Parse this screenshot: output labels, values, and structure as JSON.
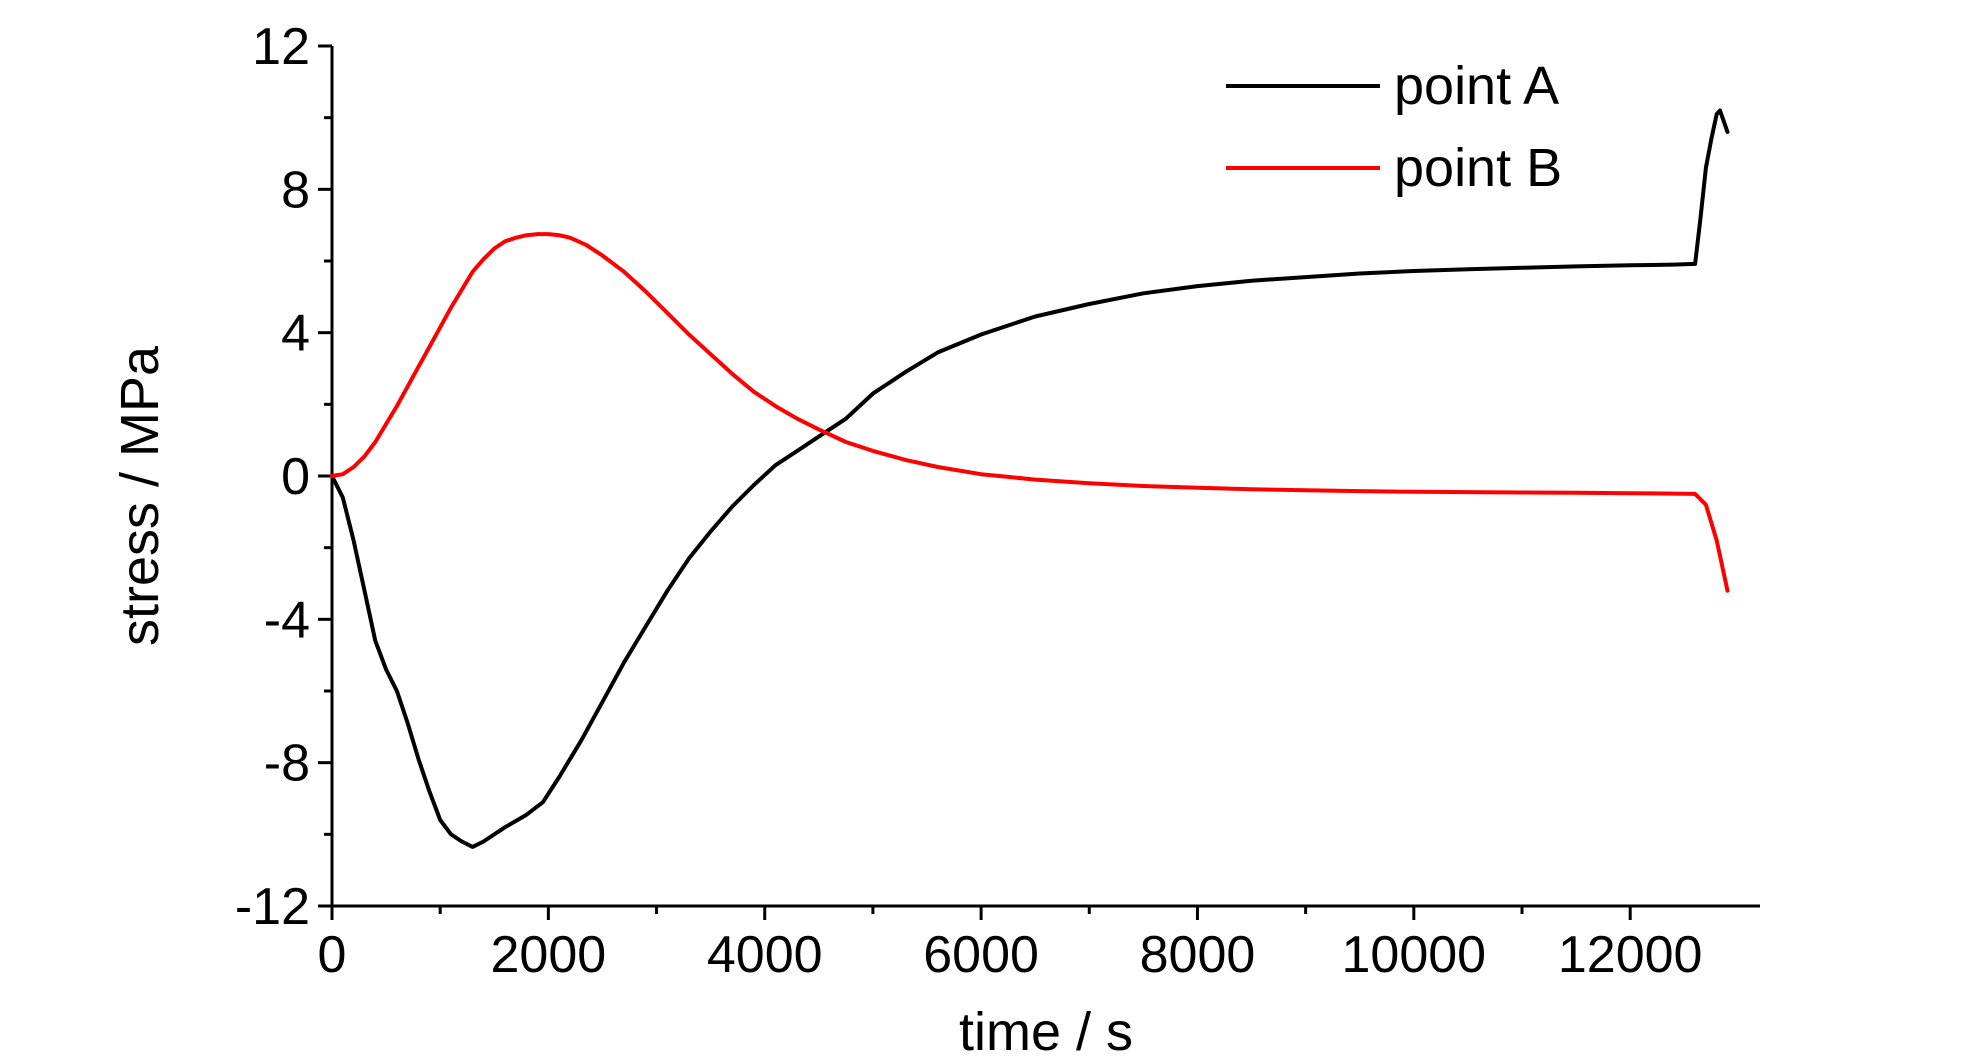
{
  "chart_data": {
    "type": "line",
    "title": "",
    "xlabel": "time / s",
    "ylabel": "stress / MPa",
    "xlim": [
      0,
      13000
    ],
    "ylim": [
      -12,
      12
    ],
    "xticks": [
      0,
      2000,
      4000,
      6000,
      8000,
      10000,
      12000
    ],
    "xtick_labels": [
      "0",
      "2000",
      "4000",
      "6000",
      "8000",
      "10000",
      "12000"
    ],
    "yticks": [
      -12,
      -8,
      -4,
      0,
      4,
      8,
      12
    ],
    "ytick_labels": [
      "-12",
      "-8",
      "-4",
      "0",
      "4",
      "8",
      "12"
    ],
    "grid": false,
    "legend_position": "top-right",
    "series": [
      {
        "name": "point A",
        "color": "#000000",
        "x": [
          0,
          100,
          200,
          300,
          400,
          500,
          600,
          700,
          800,
          900,
          1000,
          1100,
          1200,
          1300,
          1400,
          1600,
          1800,
          1950,
          2100,
          2300,
          2500,
          2700,
          2900,
          3100,
          3300,
          3500,
          3700,
          3900,
          4100,
          4300,
          4500,
          4750,
          5000,
          5300,
          5600,
          6000,
          6500,
          7000,
          7500,
          8000,
          8500,
          9000,
          9500,
          10000,
          10500,
          11000,
          11500,
          12000,
          12400,
          12600,
          12650,
          12700,
          12750,
          12800,
          12830,
          12900
        ],
        "y": [
          0,
          -0.6,
          -1.8,
          -3.2,
          -4.6,
          -5.4,
          -6.0,
          -6.9,
          -7.9,
          -8.8,
          -9.6,
          -10.0,
          -10.2,
          -10.35,
          -10.2,
          -9.8,
          -9.45,
          -9.1,
          -8.4,
          -7.4,
          -6.3,
          -5.2,
          -4.2,
          -3.2,
          -2.3,
          -1.55,
          -0.85,
          -0.25,
          0.3,
          0.7,
          1.1,
          1.6,
          2.3,
          2.9,
          3.45,
          3.95,
          4.45,
          4.8,
          5.1,
          5.3,
          5.45,
          5.55,
          5.65,
          5.72,
          5.77,
          5.81,
          5.85,
          5.88,
          5.9,
          5.92,
          7.2,
          8.6,
          9.4,
          10.1,
          10.2,
          9.6
        ]
      },
      {
        "name": "point B",
        "color": "#ff0000",
        "x": [
          0,
          100,
          200,
          300,
          400,
          500,
          600,
          700,
          800,
          900,
          1000,
          1100,
          1200,
          1300,
          1400,
          1500,
          1600,
          1700,
          1800,
          1900,
          2000,
          2100,
          2200,
          2350,
          2500,
          2700,
          2900,
          3100,
          3300,
          3500,
          3700,
          3900,
          4100,
          4300,
          4500,
          4750,
          5000,
          5300,
          5600,
          6000,
          6500,
          7000,
          7500,
          8000,
          8500,
          9000,
          9500,
          10000,
          10500,
          11000,
          11500,
          12000,
          12400,
          12600,
          12700,
          12800,
          12900
        ],
        "y": [
          0,
          0.05,
          0.25,
          0.55,
          0.95,
          1.45,
          1.95,
          2.5,
          3.05,
          3.6,
          4.15,
          4.7,
          5.2,
          5.7,
          6.05,
          6.35,
          6.55,
          6.65,
          6.72,
          6.75,
          6.75,
          6.72,
          6.65,
          6.45,
          6.15,
          5.7,
          5.15,
          4.55,
          3.95,
          3.4,
          2.85,
          2.35,
          1.95,
          1.6,
          1.3,
          0.95,
          0.7,
          0.45,
          0.25,
          0.05,
          -0.1,
          -0.2,
          -0.28,
          -0.33,
          -0.37,
          -0.4,
          -0.42,
          -0.44,
          -0.45,
          -0.46,
          -0.47,
          -0.48,
          -0.49,
          -0.5,
          -0.8,
          -1.8,
          -3.2
        ]
      }
    ]
  }
}
